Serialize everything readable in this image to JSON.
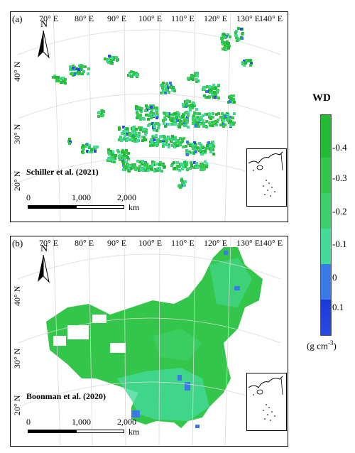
{
  "panels": [
    {
      "label": "(a)",
      "source": "Schiller et al. (2021)",
      "lon_labels": [
        "70° E",
        "80° E",
        "90° E",
        "100° E",
        "110° E",
        "120° E",
        "130° E",
        "140° E"
      ],
      "lat_labels": [
        "40° N",
        "30° N",
        "20° N"
      ],
      "scale": {
        "labels": [
          "0",
          "1,000",
          "2,000"
        ],
        "unit": "km"
      },
      "north_label": "N",
      "coverage": "sparse"
    },
    {
      "label": "(b)",
      "source": "Boonman et al. (2020)",
      "lon_labels": [
        "70° E",
        "80° E",
        "90° E",
        "100° E",
        "110° E",
        "120° E",
        "130° E",
        "140° E"
      ],
      "lat_labels": [
        "40° N",
        "30° N",
        "20° N"
      ],
      "scale": {
        "labels": [
          "0",
          "1,000",
          "2,000"
        ],
        "unit": "km"
      },
      "north_label": "N",
      "coverage": "full"
    }
  ],
  "legend": {
    "title": "WD",
    "ticks": [
      "-0.4",
      "-0.3",
      "-0.2",
      "-0.1",
      "0",
      "0.1"
    ],
    "unit": "(g cm",
    "unit_sup": "-3",
    "unit_close": ")",
    "colors": [
      "#22bb33",
      "#33c64a",
      "#3dd06a",
      "#44da98",
      "#3a7ae6",
      "#1a38d8"
    ]
  }
}
